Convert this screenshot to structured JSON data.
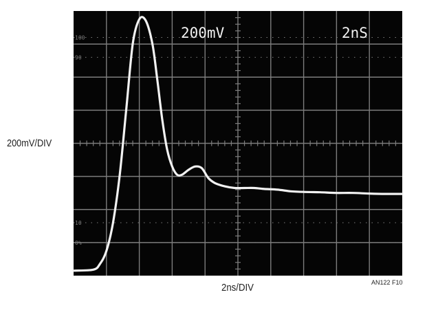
{
  "figure_id": "AN122 F10",
  "chart_data": {
    "type": "line",
    "screen_labels": {
      "vertical_scale": "200mV",
      "horizontal_scale": "2nS"
    },
    "ylabel": "200mV/DIV",
    "xlabel": "2ns/DIV",
    "x_divisions": 10,
    "y_divisions": 8,
    "grid": true,
    "graticule_marks": [
      "100",
      "90",
      "10",
      "0%"
    ],
    "colors": {
      "screen": "#050505",
      "grid": "#7d7d7d",
      "trace": "#f2f2f2"
    },
    "series": [
      {
        "x": [
          0,
          0.6,
          0.8,
          1.0,
          1.2,
          1.4,
          1.6,
          1.8,
          2.0,
          2.2,
          2.4,
          2.55,
          2.7,
          2.85,
          3.0,
          3.15,
          3.3,
          3.5,
          3.7,
          3.9,
          4.1,
          4.3,
          4.6,
          4.9,
          5.2,
          5.5,
          5.8,
          6.2,
          6.6,
          7.0,
          7.5,
          8.0,
          8.5,
          9.0,
          9.5,
          10.0
        ],
        "y": [
          0.15,
          0.18,
          0.35,
          0.75,
          1.6,
          3.0,
          5.0,
          7.0,
          7.75,
          7.7,
          7.0,
          5.9,
          4.7,
          3.8,
          3.3,
          3.05,
          3.05,
          3.2,
          3.3,
          3.25,
          2.95,
          2.8,
          2.7,
          2.65,
          2.65,
          2.65,
          2.62,
          2.6,
          2.55,
          2.53,
          2.52,
          2.5,
          2.5,
          2.48,
          2.47,
          2.47
        ]
      }
    ]
  }
}
